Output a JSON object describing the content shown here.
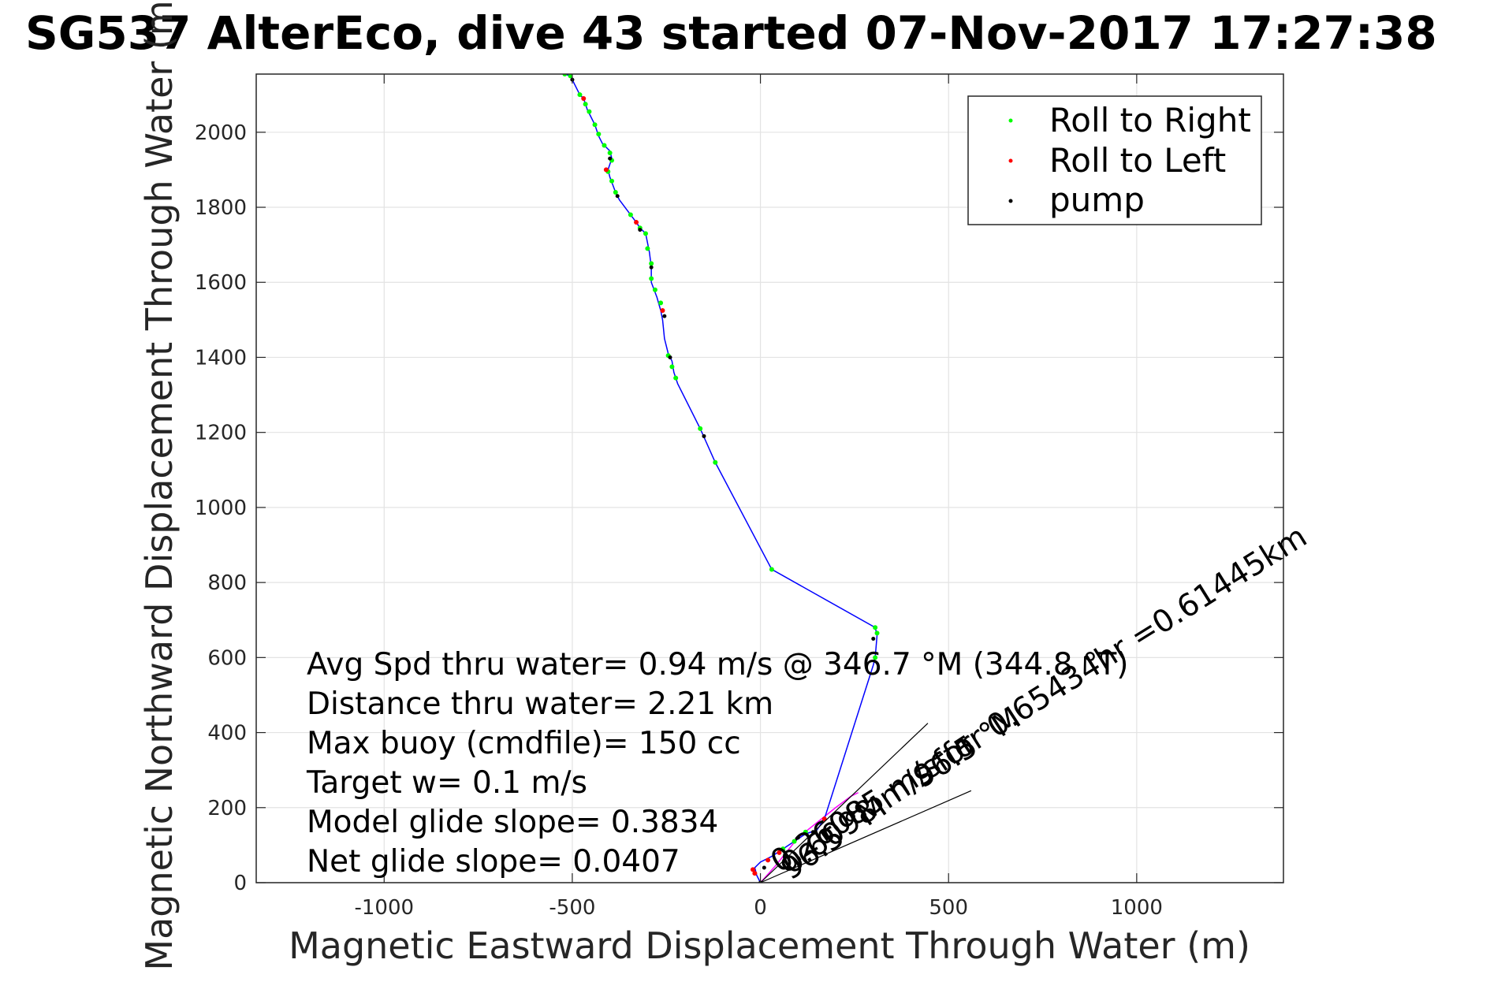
{
  "chart_data": {
    "type": "scatter",
    "title": "SG537 AlterEco, dive 43 started 07-Nov-2017 17:27:38",
    "xlabel": "Magnetic Eastward Displacement Through Water (m)",
    "ylabel": "Magnetic Northward Displacement Through Water (m)",
    "xlim": [
      -1340,
      1390
    ],
    "ylim": [
      0,
      2155
    ],
    "xticks": [
      -1000,
      -500,
      0,
      500,
      1000
    ],
    "yticks": [
      0,
      200,
      400,
      600,
      800,
      1000,
      1200,
      1400,
      1600,
      1800,
      2000
    ],
    "grid": true,
    "legend": {
      "placement": "top-right",
      "entries": [
        {
          "label": "Roll to Right",
          "color": "#00ff00"
        },
        {
          "label": "Roll to Left",
          "color": "#ff0000"
        },
        {
          "label": "pump",
          "color": "#000000"
        }
      ]
    },
    "track_color": "#0000ff",
    "track": [
      [
        0,
        0
      ],
      [
        -10,
        20
      ],
      [
        -15,
        40
      ],
      [
        0,
        55
      ],
      [
        30,
        70
      ],
      [
        60,
        90
      ],
      [
        90,
        110
      ],
      [
        120,
        130
      ],
      [
        150,
        140
      ],
      [
        170,
        170
      ],
      [
        300,
        580
      ],
      [
        305,
        600
      ],
      [
        310,
        660
      ],
      [
        305,
        680
      ],
      [
        30,
        835
      ],
      [
        -120,
        1120
      ],
      [
        -160,
        1210
      ],
      [
        -220,
        1330
      ],
      [
        -230,
        1360
      ],
      [
        -235,
        1390
      ],
      [
        -245,
        1410
      ],
      [
        -255,
        1450
      ],
      [
        -260,
        1500
      ],
      [
        -265,
        1525
      ],
      [
        -275,
        1560
      ],
      [
        -290,
        1600
      ],
      [
        -290,
        1640
      ],
      [
        -295,
        1680
      ],
      [
        -305,
        1730
      ],
      [
        -320,
        1745
      ],
      [
        -330,
        1760
      ],
      [
        -345,
        1780
      ],
      [
        -375,
        1820
      ],
      [
        -385,
        1840
      ],
      [
        -400,
        1880
      ],
      [
        -405,
        1900
      ],
      [
        -395,
        1930
      ],
      [
        -400,
        1950
      ],
      [
        -420,
        1970
      ],
      [
        -430,
        1990
      ],
      [
        -440,
        2020
      ],
      [
        -450,
        2040
      ],
      [
        -460,
        2060
      ],
      [
        -470,
        2090
      ],
      [
        -480,
        2100
      ],
      [
        -505,
        2150
      ],
      [
        -520,
        2155
      ]
    ],
    "roll_right": [
      [
        -520,
        2155
      ],
      [
        -505,
        2150
      ],
      [
        -480,
        2100
      ],
      [
        -465,
        2075
      ],
      [
        -455,
        2055
      ],
      [
        -440,
        2020
      ],
      [
        -430,
        1995
      ],
      [
        -415,
        1965
      ],
      [
        -400,
        1945
      ],
      [
        -395,
        1925
      ],
      [
        -405,
        1895
      ],
      [
        -395,
        1870
      ],
      [
        -385,
        1840
      ],
      [
        -345,
        1780
      ],
      [
        -320,
        1745
      ],
      [
        -305,
        1730
      ],
      [
        -300,
        1690
      ],
      [
        -290,
        1650
      ],
      [
        -290,
        1610
      ],
      [
        -280,
        1580
      ],
      [
        -265,
        1545
      ],
      [
        -245,
        1405
      ],
      [
        -235,
        1375
      ],
      [
        -225,
        1345
      ],
      [
        -160,
        1210
      ],
      [
        -120,
        1120
      ],
      [
        30,
        835
      ],
      [
        305,
        680
      ],
      [
        310,
        665
      ],
      [
        305,
        600
      ],
      [
        120,
        135
      ],
      [
        90,
        110
      ],
      [
        60,
        90
      ]
    ],
    "roll_left": [
      [
        -470,
        2090
      ],
      [
        -410,
        1900
      ],
      [
        -330,
        1760
      ],
      [
        -260,
        1525
      ],
      [
        -20,
        35
      ],
      [
        -15,
        25
      ],
      [
        20,
        60
      ],
      [
        50,
        80
      ],
      [
        170,
        170
      ]
    ],
    "pump": [
      [
        -500,
        2140
      ],
      [
        -400,
        1930
      ],
      [
        -380,
        1830
      ],
      [
        -320,
        1740
      ],
      [
        -290,
        1640
      ],
      [
        -255,
        1510
      ],
      [
        -240,
        1400
      ],
      [
        -150,
        1190
      ],
      [
        300,
        650
      ],
      [
        0,
        0
      ],
      [
        10,
        40
      ],
      [
        100,
        120
      ],
      [
        140,
        135
      ]
    ],
    "magenta_color": "#ff00ff",
    "magenta_line": [
      [
        0,
        0
      ],
      [
        40,
        45
      ],
      [
        100,
        120
      ],
      [
        150,
        160
      ],
      [
        200,
        200
      ],
      [
        240,
        230
      ],
      [
        260,
        240
      ]
    ],
    "ref_lines": [
      [
        [
          0,
          0
        ],
        [
          445,
          425
        ]
      ],
      [
        [
          0,
          0
        ],
        [
          560,
          245
        ]
      ]
    ],
    "stats": [
      "Avg Spd thru water=  0.94 m/s @ 346.7 °M (344.8 °T)",
      "Distance thru water=  2.21 km",
      "Max buoy (cmdfile)= 150 cc",
      "Target w= 0.1 m/s",
      "Model glide slope= 0.3834",
      "Net glide slope= 0.0407"
    ],
    "annotations": [
      {
        "text": "96.5 °M",
        "x": 80,
        "y": 5,
        "angle": 35
      },
      {
        "text": "0.26085 m/s for 0.65434hr =0.61445km",
        "x": 50,
        "y": 25,
        "angle": 32
      },
      {
        "text": "96.5 °M",
        "x": 430,
        "y": 250,
        "angle": 33
      },
      {
        "text": "0.6098 m/s for",
        "x": 80,
        "y": 20,
        "angle": 34
      }
    ]
  }
}
